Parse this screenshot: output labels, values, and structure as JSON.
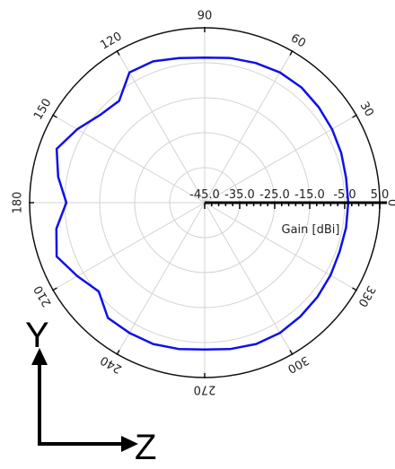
{
  "chart_data": {
    "type": "polar-line",
    "angular_unit": "deg",
    "angle_ticks": [
      0,
      30,
      60,
      90,
      120,
      150,
      180,
      210,
      240,
      270,
      300,
      330
    ],
    "angle_tick_labels": [
      "0",
      "30",
      "60",
      "90",
      "120",
      "150",
      "180",
      "210",
      "240",
      "270",
      "300",
      "330"
    ],
    "radial_label": "Gain [dBi]",
    "radial_ticks": [
      "-45.0",
      "-35.0",
      "-25.0",
      "-15.0",
      "-5.0",
      "5.0"
    ],
    "radial_range": [
      -45,
      5
    ],
    "grid": true,
    "series": [
      {
        "color": "#1010e8",
        "angles": [
          0,
          10,
          20,
          30,
          40,
          50,
          60,
          70,
          80,
          90,
          100,
          110,
          120,
          130,
          140,
          150,
          160,
          170,
          180,
          190,
          200,
          210,
          220,
          230,
          240,
          250,
          260,
          270,
          280,
          290,
          300,
          310,
          320,
          330,
          340,
          350
        ],
        "values": [
          -4.0,
          -4.0,
          -3.5,
          -3.0,
          -2.5,
          -2.0,
          -2.0,
          -2.5,
          -3.0,
          -3.5,
          -3.0,
          -2.0,
          -2.0,
          -7.0,
          -6.0,
          -3.0,
          0.0,
          -2.5,
          -5.5,
          -2.0,
          0.0,
          -3.0,
          -5.5,
          -2.0,
          -2.0,
          -2.0,
          -2.5,
          -3.0,
          -2.5,
          -2.0,
          -2.0,
          -2.5,
          -3.0,
          -3.5,
          -4.0,
          -4.0
        ]
      }
    ]
  },
  "axes_annotation": {
    "vertical_label": "Y",
    "horizontal_label": "Z"
  }
}
